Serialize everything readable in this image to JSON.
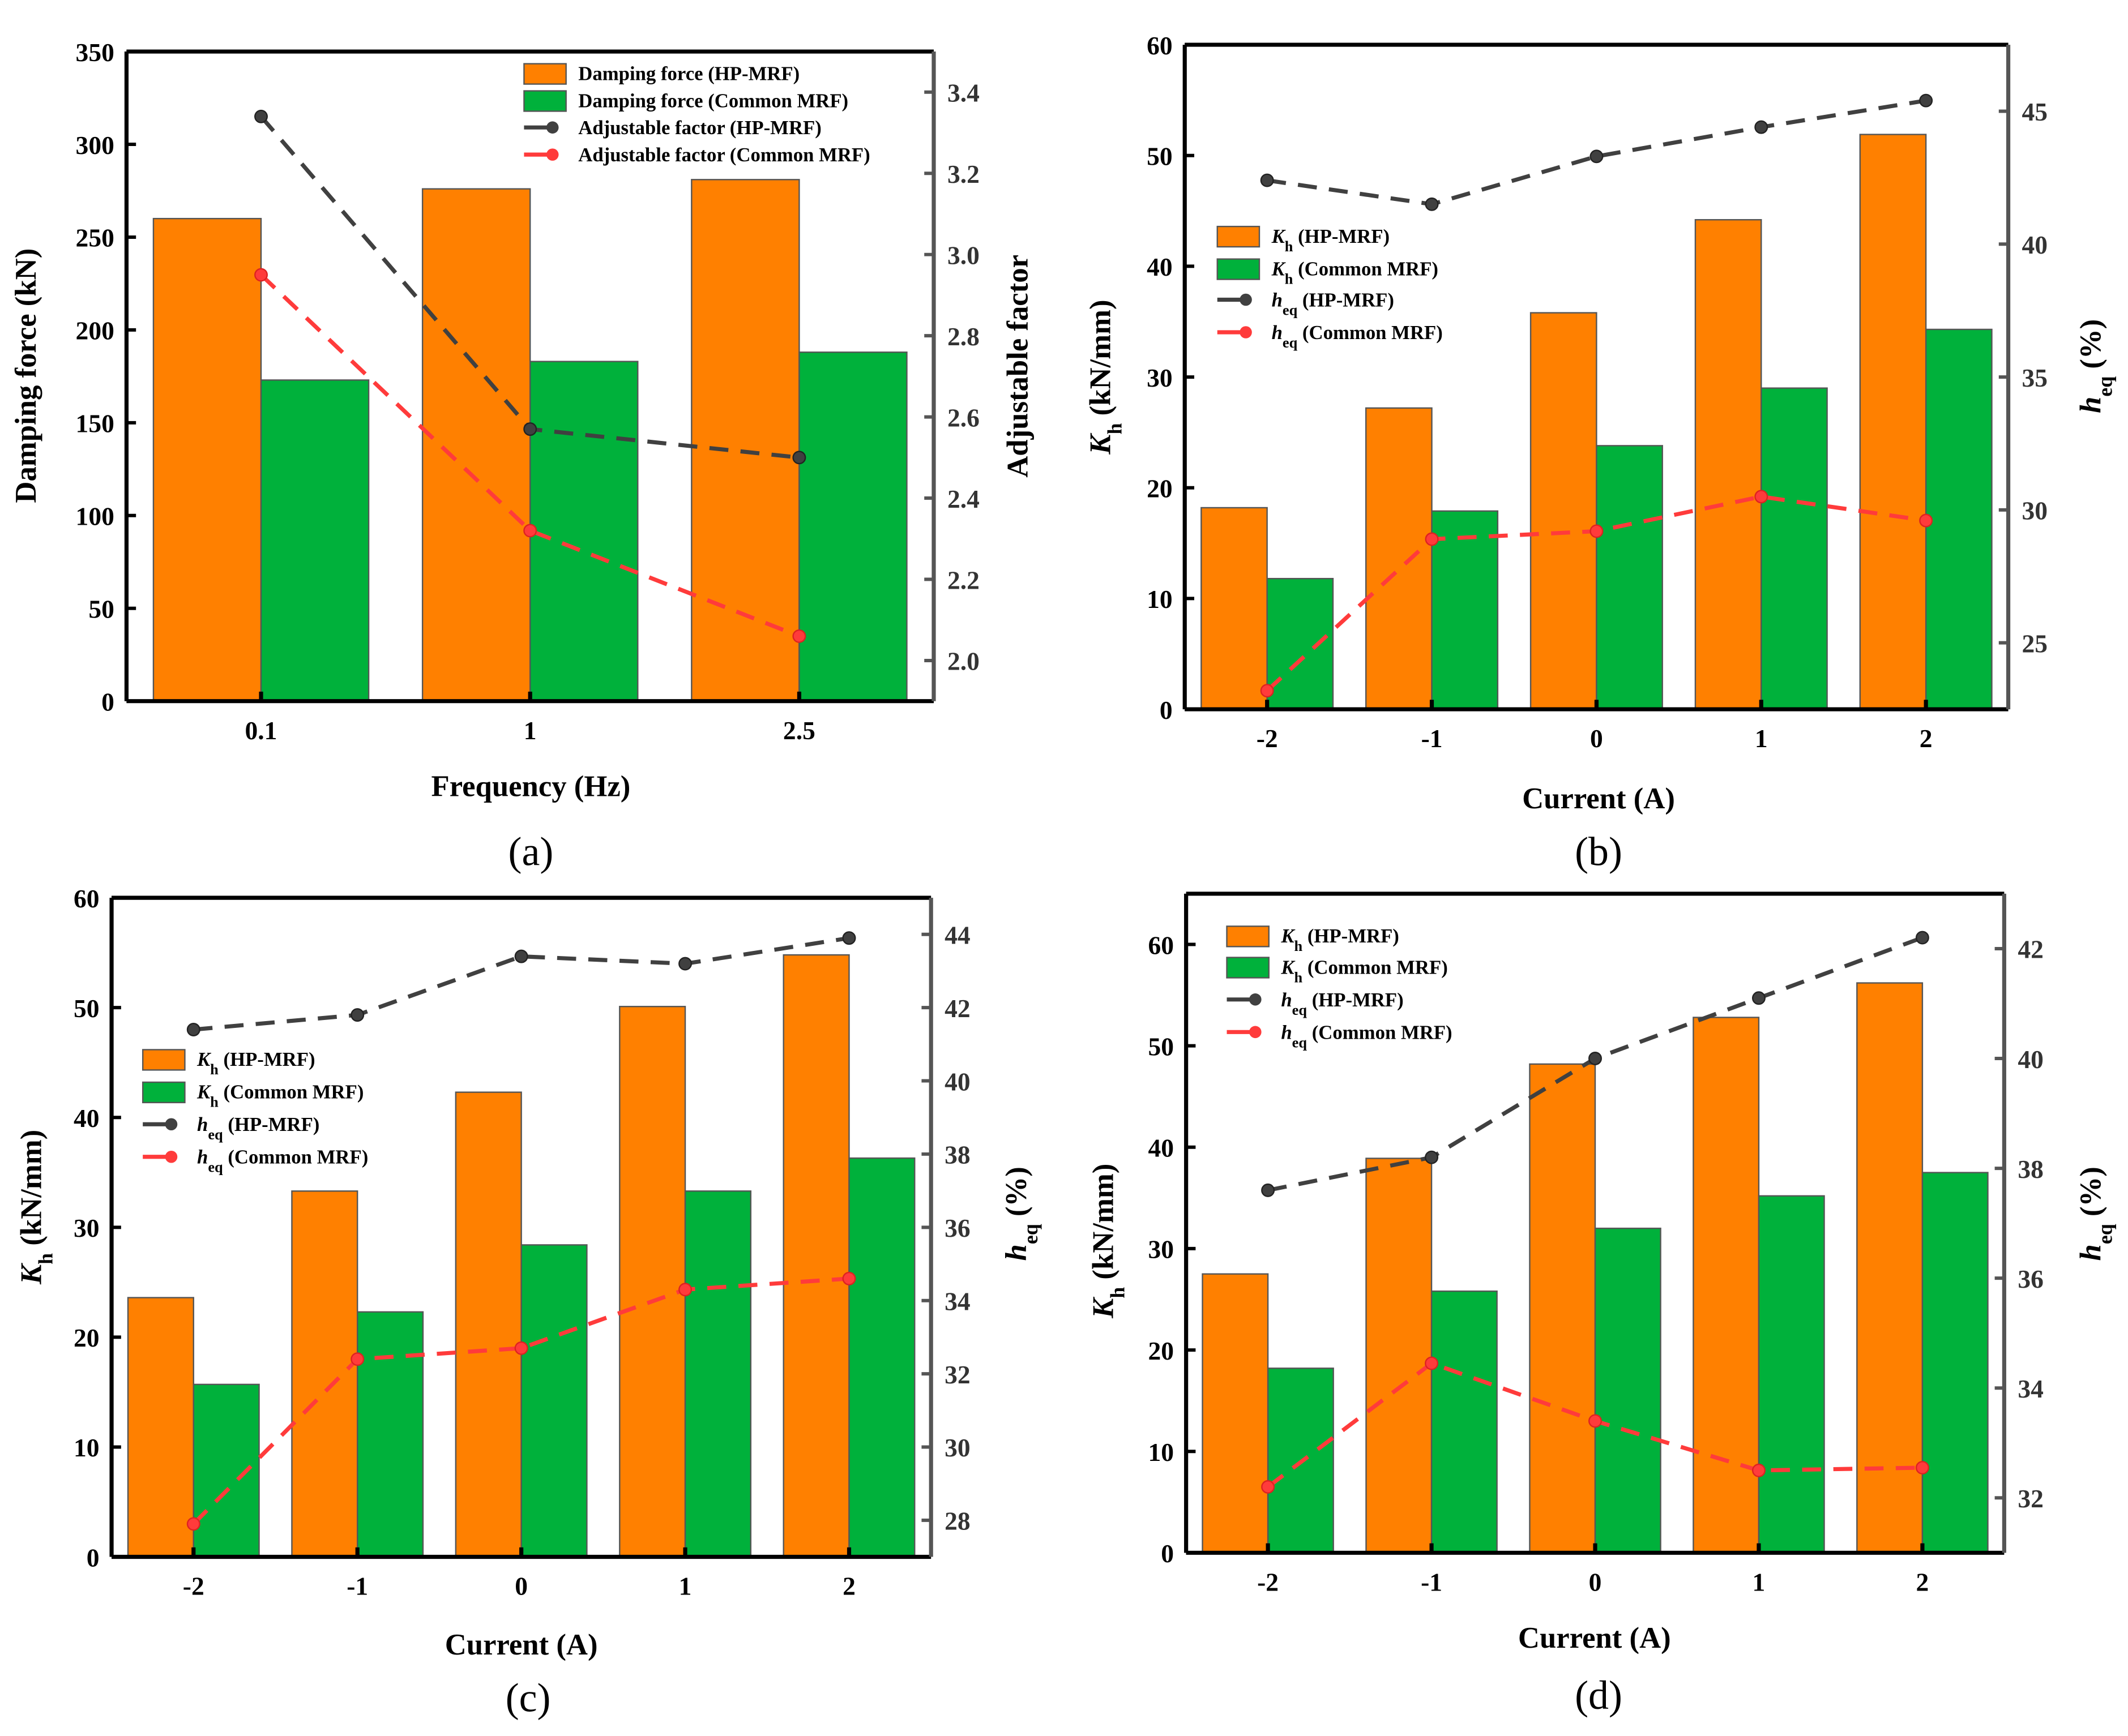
{
  "colors": {
    "hp_bar": "#ff8000",
    "common_bar": "#00b13b",
    "hp_line": "#404040",
    "common_line": "#ff3b3b"
  },
  "chart_data": [
    {
      "type": "bar",
      "caption": "(a)",
      "categories": [
        "0.1",
        "1",
        "2.5"
      ],
      "xlabel": [
        {
          "t": "Frequency (Hz)"
        }
      ],
      "ylabel": [
        {
          "t": "Damping force (kN)"
        }
      ],
      "y2label": [
        {
          "t": "Adjustable factor"
        }
      ],
      "ylim": [
        0,
        350
      ],
      "yticks": [
        0,
        50,
        100,
        150,
        200,
        250,
        300,
        350
      ],
      "y2lim": [
        1.9,
        3.5
      ],
      "y2ticks": [
        "2.0",
        "2.2",
        "2.4",
        "2.6",
        "2.8",
        "3.0",
        "3.2",
        "3.4"
      ],
      "series": [
        {
          "name": "Damping force (HP-MRF)",
          "kind": "bar",
          "axis": "left",
          "color": "hp_bar",
          "label": [
            {
              "t": "Damping force (HP-MRF)"
            }
          ],
          "values": [
            260,
            276,
            281
          ]
        },
        {
          "name": "Damping force (Common MRF)",
          "kind": "bar",
          "axis": "left",
          "color": "common_bar",
          "label": [
            {
              "t": "Damping force (Common MRF)"
            }
          ],
          "values": [
            173,
            183,
            188
          ]
        },
        {
          "name": "Adjustable factor (HP-MRF)",
          "kind": "line",
          "axis": "right",
          "color": "hp_line",
          "label": [
            {
              "t": "Adjustable factor (HP-MRF)"
            }
          ],
          "values": [
            3.34,
            2.57,
            2.5
          ]
        },
        {
          "name": "Adjustable factor (Common MRF)",
          "kind": "line",
          "axis": "right",
          "color": "common_line",
          "label": [
            {
              "t": "Adjustable factor (Common MRF)"
            }
          ],
          "values": [
            2.95,
            2.32,
            2.06
          ]
        }
      ]
    },
    {
      "type": "bar",
      "caption": "(b)",
      "categories": [
        "-2",
        "-1",
        "0",
        "1",
        "2"
      ],
      "xlabel": [
        {
          "t": "Current (A)"
        }
      ],
      "ylabel": [
        {
          "t": "K",
          "i": true
        },
        {
          "t": "h",
          "sub": true
        },
        {
          "t": " (kN/mm)"
        }
      ],
      "y2label": [
        {
          "t": "h",
          "i": true
        },
        {
          "t": "eq",
          "sub": true
        },
        {
          "t": " (%)"
        }
      ],
      "ylim": [
        0,
        60
      ],
      "yticks": [
        0,
        10,
        20,
        30,
        40,
        50,
        60
      ],
      "y2lim": [
        22.5,
        47.5
      ],
      "y2ticks": [
        "25",
        "30",
        "35",
        "40",
        "45"
      ],
      "series": [
        {
          "name": "Kh (HP-MRF)",
          "kind": "bar",
          "axis": "left",
          "color": "hp_bar",
          "label": [
            {
              "t": "K",
              "i": true
            },
            {
              "t": "h",
              "sub": true
            },
            {
              "t": " (HP-MRF)"
            }
          ],
          "values": [
            18.2,
            27.2,
            35.8,
            44.2,
            51.9
          ]
        },
        {
          "name": "Kh (Common MRF)",
          "kind": "bar",
          "axis": "left",
          "color": "common_bar",
          "label": [
            {
              "t": "K",
              "i": true
            },
            {
              "t": "h",
              "sub": true
            },
            {
              "t": " (Common MRF)"
            }
          ],
          "values": [
            11.8,
            17.9,
            23.8,
            29.0,
            34.3
          ]
        },
        {
          "name": "heq (HP-MRF)",
          "kind": "line",
          "axis": "right",
          "color": "hp_line",
          "label": [
            {
              "t": "h",
              "i": true
            },
            {
              "t": "eq",
              "sub": true
            },
            {
              "t": " (HP-MRF)"
            }
          ],
          "values": [
            42.4,
            41.5,
            43.3,
            44.4,
            45.4
          ]
        },
        {
          "name": "heq (Common MRF)",
          "kind": "line",
          "axis": "right",
          "color": "common_line",
          "label": [
            {
              "t": "h",
              "i": true
            },
            {
              "t": "eq",
              "sub": true
            },
            {
              "t": " (Common MRF)"
            }
          ],
          "values": [
            23.2,
            28.9,
            29.2,
            30.5,
            29.6
          ]
        }
      ]
    },
    {
      "type": "bar",
      "caption": "(c)",
      "categories": [
        "-2",
        "-1",
        "0",
        "1",
        "2"
      ],
      "xlabel": [
        {
          "t": "Current (A)"
        }
      ],
      "ylabel": [
        {
          "t": "K",
          "i": true
        },
        {
          "t": "h",
          "sub": true
        },
        {
          "t": " (kN/mm)"
        }
      ],
      "y2label": [
        {
          "t": "h",
          "i": true
        },
        {
          "t": "eq",
          "sub": true
        },
        {
          "t": " (%)"
        }
      ],
      "ylim": [
        0,
        60
      ],
      "yticks": [
        0,
        10,
        20,
        30,
        40,
        50,
        60
      ],
      "y2lim": [
        27,
        45
      ],
      "y2ticks": [
        "28",
        "30",
        "32",
        "34",
        "36",
        "38",
        "40",
        "42",
        "44"
      ],
      "series": [
        {
          "name": "Kh (HP-MRF)",
          "kind": "bar",
          "axis": "left",
          "color": "hp_bar",
          "label": [
            {
              "t": "K",
              "i": true
            },
            {
              "t": "h",
              "sub": true
            },
            {
              "t": " (HP-MRF)"
            }
          ],
          "values": [
            23.6,
            33.3,
            42.3,
            50.1,
            54.8
          ]
        },
        {
          "name": "Kh (Common MRF)",
          "kind": "bar",
          "axis": "left",
          "color": "common_bar",
          "label": [
            {
              "t": "K",
              "i": true
            },
            {
              "t": "h",
              "sub": true
            },
            {
              "t": " (Common MRF)"
            }
          ],
          "values": [
            15.7,
            22.3,
            28.4,
            33.3,
            36.3
          ]
        },
        {
          "name": "heq (HP-MRF)",
          "kind": "line",
          "axis": "right",
          "color": "hp_line",
          "label": [
            {
              "t": "h",
              "i": true
            },
            {
              "t": "eq",
              "sub": true
            },
            {
              "t": " (HP-MRF)"
            }
          ],
          "values": [
            41.4,
            41.8,
            43.4,
            43.2,
            43.9
          ]
        },
        {
          "name": "heq (Common MRF)",
          "kind": "line",
          "axis": "right",
          "color": "common_line",
          "label": [
            {
              "t": "h",
              "i": true
            },
            {
              "t": "eq",
              "sub": true
            },
            {
              "t": " (Common MRF)"
            }
          ],
          "values": [
            27.9,
            32.4,
            32.7,
            34.3,
            34.6
          ]
        }
      ]
    },
    {
      "type": "bar",
      "caption": "(d)",
      "categories": [
        "-2",
        "-1",
        "0",
        "1",
        "2"
      ],
      "xlabel": [
        {
          "t": "Current (A)"
        }
      ],
      "ylabel": [
        {
          "t": "K",
          "i": true
        },
        {
          "t": "h",
          "sub": true
        },
        {
          "t": " (kN/mm)"
        }
      ],
      "y2label": [
        {
          "t": "h",
          "i": true
        },
        {
          "t": "eq",
          "sub": true
        },
        {
          "t": " (%)"
        }
      ],
      "ylim": [
        0,
        65
      ],
      "yticks": [
        0,
        10,
        20,
        30,
        40,
        50,
        60
      ],
      "y2lim": [
        31,
        43
      ],
      "y2ticks": [
        "32",
        "34",
        "36",
        "38",
        "40",
        "42"
      ],
      "series": [
        {
          "name": "Kh (HP-MRF)",
          "kind": "bar",
          "axis": "left",
          "color": "hp_bar",
          "label": [
            {
              "t": "K",
              "i": true
            },
            {
              "t": "h",
              "sub": true
            },
            {
              "t": " (HP-MRF)"
            }
          ],
          "values": [
            27.5,
            38.9,
            48.2,
            52.8,
            56.2
          ]
        },
        {
          "name": "Kh (Common MRF)",
          "kind": "bar",
          "axis": "left",
          "color": "common_bar",
          "label": [
            {
              "t": "K",
              "i": true
            },
            {
              "t": "h",
              "sub": true
            },
            {
              "t": " (Common MRF)"
            }
          ],
          "values": [
            18.2,
            25.8,
            32.0,
            35.2,
            37.5
          ]
        },
        {
          "name": "heq (HP-MRF)",
          "kind": "line",
          "axis": "right",
          "color": "hp_line",
          "label": [
            {
              "t": "h",
              "i": true
            },
            {
              "t": "eq",
              "sub": true
            },
            {
              "t": " (HP-MRF)"
            }
          ],
          "values": [
            37.6,
            38.2,
            40.0,
            41.1,
            42.2
          ]
        },
        {
          "name": "heq (Common MRF)",
          "kind": "line",
          "axis": "right",
          "color": "common_line",
          "label": [
            {
              "t": "h",
              "i": true
            },
            {
              "t": "eq",
              "sub": true
            },
            {
              "t": " (Common MRF)"
            }
          ],
          "values": [
            32.2,
            34.45,
            33.4,
            32.5,
            32.55
          ]
        }
      ]
    }
  ]
}
